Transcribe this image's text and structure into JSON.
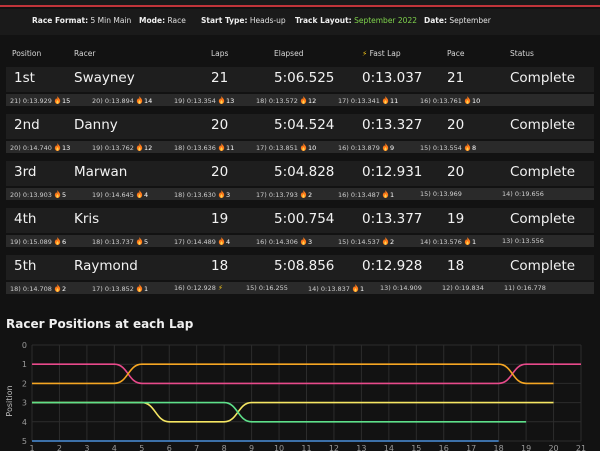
{
  "meta": {
    "race_format_label": "Race Format:",
    "race_format": "5 Min Main",
    "mode_label": "Mode:",
    "mode": "Race",
    "start_type_label": "Start Type:",
    "start_type": "Heads-up",
    "track_layout_label": "Track Layout:",
    "track_layout": "September 2022",
    "date_label": "Date:",
    "date": "September"
  },
  "columns": [
    "Position",
    "Racer",
    "Laps",
    "Elapsed",
    "Fast Lap",
    "Pace",
    "Status"
  ],
  "racers": [
    {
      "position": "1st",
      "name": "Swayney",
      "laps": "21",
      "elapsed": "5:06.525",
      "fast_lap": "0:13.037",
      "pace": "21",
      "status": "Complete",
      "lap_times": [
        {
          "text": "21) 0:13.929",
          "badge": "15",
          "icon": "fire"
        },
        {
          "text": "20) 0:13.894",
          "badge": "14",
          "icon": "fire"
        },
        {
          "text": "19) 0:13.354",
          "badge": "13",
          "icon": "fire"
        },
        {
          "text": "18) 0:13.572",
          "badge": "12",
          "icon": "fire"
        },
        {
          "text": "17) 0:13.341",
          "badge": "11",
          "icon": "fire"
        },
        {
          "text": "16) 0:13.761",
          "badge": "10",
          "icon": "fire"
        }
      ]
    },
    {
      "position": "2nd",
      "name": "Danny",
      "laps": "20",
      "elapsed": "5:04.524",
      "fast_lap": "0:13.327",
      "pace": "20",
      "status": "Complete",
      "lap_times": [
        {
          "text": "20) 0:14.740",
          "badge": "13",
          "icon": "fire"
        },
        {
          "text": "19) 0:13.762",
          "badge": "12",
          "icon": "fire"
        },
        {
          "text": "18) 0:13.636",
          "badge": "11",
          "icon": "fire"
        },
        {
          "text": "17) 0:13.851",
          "badge": "10",
          "icon": "fire"
        },
        {
          "text": "16) 0:13.879",
          "badge": "9",
          "icon": "fire"
        },
        {
          "text": "15) 0:13.554",
          "badge": "8",
          "icon": "fire"
        }
      ]
    },
    {
      "position": "3rd",
      "name": "Marwan",
      "laps": "20",
      "elapsed": "5:04.828",
      "fast_lap": "0:12.931",
      "pace": "20",
      "status": "Complete",
      "lap_times": [
        {
          "text": "20) 0:13.903",
          "badge": "5",
          "icon": "fire"
        },
        {
          "text": "19) 0:14.645",
          "badge": "4",
          "icon": "fire"
        },
        {
          "text": "18) 0:13.630",
          "badge": "3",
          "icon": "fire"
        },
        {
          "text": "17) 0:13.793",
          "badge": "2",
          "icon": "fire"
        },
        {
          "text": "16) 0:13.487",
          "badge": "1",
          "icon": "fire"
        },
        {
          "text": "15) 0:13.969",
          "badge": "",
          "icon": ""
        },
        {
          "text": "14) 0:19.656",
          "badge": "",
          "icon": ""
        }
      ]
    },
    {
      "position": "4th",
      "name": "Kris",
      "laps": "19",
      "elapsed": "5:00.754",
      "fast_lap": "0:13.377",
      "pace": "19",
      "status": "Complete",
      "lap_times": [
        {
          "text": "19) 0:15.089",
          "badge": "6",
          "icon": "fire"
        },
        {
          "text": "18) 0:13.737",
          "badge": "5",
          "icon": "fire"
        },
        {
          "text": "17) 0:14.489",
          "badge": "4",
          "icon": "fire"
        },
        {
          "text": "16) 0:14.306",
          "badge": "3",
          "icon": "fire"
        },
        {
          "text": "15) 0:14.537",
          "badge": "2",
          "icon": "fire"
        },
        {
          "text": "14) 0:13.576",
          "badge": "1",
          "icon": "fire"
        },
        {
          "text": "13) 0:13.556",
          "badge": "",
          "icon": ""
        }
      ]
    },
    {
      "position": "5th",
      "name": "Raymond",
      "laps": "18",
      "elapsed": "5:08.856",
      "fast_lap": "0:12.928",
      "pace": "18",
      "status": "Complete",
      "lap_times": [
        {
          "text": "18) 0:14.708",
          "badge": "2",
          "icon": "fire"
        },
        {
          "text": "17) 0:13.852",
          "badge": "1",
          "icon": "fire"
        },
        {
          "text": "16) 0:12.928",
          "badge": "",
          "icon": "bolt"
        },
        {
          "text": "15) 0:16.255",
          "badge": "",
          "icon": ""
        },
        {
          "text": "14) 0:13.837",
          "badge": "1",
          "icon": "fire"
        },
        {
          "text": "13) 0:14.909",
          "badge": "",
          "icon": ""
        },
        {
          "text": "12) 0:19.834",
          "badge": "",
          "icon": ""
        },
        {
          "text": "11) 0:16.778",
          "badge": "",
          "icon": ""
        }
      ]
    }
  ],
  "chart_title": "Racer Positions at each Lap",
  "chart_data": {
    "type": "line",
    "title": "Racer Positions at each Lap",
    "xlabel": "",
    "ylabel": "Position",
    "x": [
      1,
      2,
      3,
      4,
      5,
      6,
      7,
      8,
      9,
      10,
      11,
      12,
      13,
      14,
      15,
      16,
      17,
      18,
      19,
      20,
      21
    ],
    "xlim": [
      1,
      21
    ],
    "ylim": [
      0,
      5
    ],
    "y_inverted": true,
    "grid": true,
    "series": [
      {
        "color": "#e84a8b",
        "values": [
          1,
          1,
          1,
          1,
          2,
          2,
          2,
          2,
          2,
          2,
          2,
          2,
          2,
          2,
          2,
          2,
          2,
          2,
          1,
          1,
          1
        ]
      },
      {
        "color": "#f5a623",
        "values": [
          2,
          2,
          2,
          2,
          1,
          1,
          1,
          1,
          1,
          1,
          1,
          1,
          1,
          1,
          1,
          1,
          1,
          1,
          2,
          2,
          null
        ]
      },
      {
        "color": "#f5e663",
        "values": [
          3,
          3,
          3,
          3,
          3,
          4,
          4,
          4,
          3,
          3,
          3,
          3,
          3,
          3,
          3,
          3,
          3,
          3,
          3,
          3,
          null
        ]
      },
      {
        "color": "#5ee08a",
        "values": [
          3,
          3,
          3,
          3,
          3,
          3,
          3,
          3,
          4,
          4,
          4,
          4,
          4,
          4,
          4,
          4,
          4,
          4,
          4,
          null,
          null
        ]
      },
      {
        "color": "#4a90d9",
        "values": [
          5,
          5,
          5,
          5,
          5,
          5,
          5,
          5,
          5,
          5,
          5,
          5,
          5,
          5,
          5,
          5,
          5,
          5,
          null,
          null,
          null
        ]
      }
    ]
  }
}
